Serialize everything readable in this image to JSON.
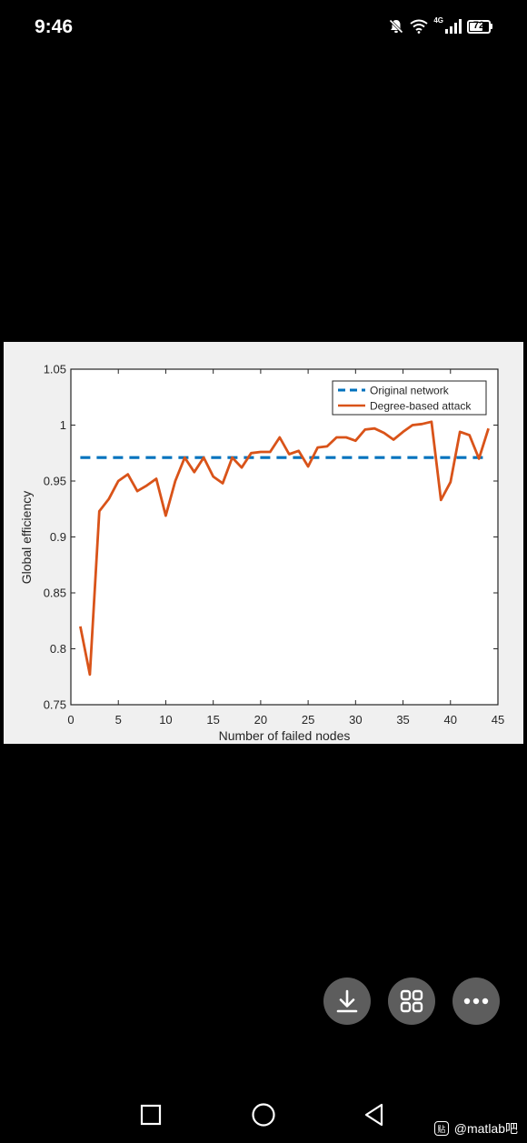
{
  "status_bar": {
    "time": "9:46",
    "network_type": "4G",
    "battery_level": "72",
    "battery_fraction": 0.72,
    "icons": [
      "bell-off-icon",
      "wifi-icon",
      "signal-icon",
      "battery-icon"
    ]
  },
  "chart_data": {
    "type": "line",
    "title": "",
    "xlabel": "Number of failed nodes",
    "ylabel": "Global efficiency",
    "xlim": [
      0,
      45
    ],
    "ylim": [
      0.75,
      1.05
    ],
    "x_ticks": [
      0,
      5,
      10,
      15,
      20,
      25,
      30,
      35,
      40,
      45
    ],
    "y_ticks": [
      0.75,
      0.8,
      0.85,
      0.9,
      0.95,
      1,
      1.05
    ],
    "x_tick_labels": [
      "0",
      "5",
      "10",
      "15",
      "20",
      "25",
      "30",
      "35",
      "40",
      "45"
    ],
    "y_tick_labels": [
      "0.75",
      "0.8",
      "0.85",
      "0.9",
      "0.95",
      "1",
      "1.05"
    ],
    "grid": false,
    "legend_position": "top-right",
    "series": [
      {
        "name": "Original network",
        "style": "dashed",
        "color": "#0072BD",
        "x": [
          1,
          44
        ],
        "y": [
          0.971,
          0.971
        ]
      },
      {
        "name": "Degree-based attack",
        "style": "solid",
        "color": "#D95319",
        "x": [
          1,
          2,
          3,
          4,
          5,
          6,
          7,
          8,
          9,
          10,
          11,
          12,
          13,
          14,
          15,
          16,
          17,
          18,
          19,
          20,
          21,
          22,
          23,
          24,
          25,
          26,
          27,
          28,
          29,
          30,
          31,
          32,
          33,
          34,
          35,
          36,
          37,
          38,
          39,
          40,
          41,
          42,
          43,
          44
        ],
        "y": [
          0.82,
          0.777,
          0.923,
          0.934,
          0.95,
          0.956,
          0.941,
          0.946,
          0.952,
          0.919,
          0.95,
          0.971,
          0.958,
          0.971,
          0.954,
          0.948,
          0.971,
          0.962,
          0.975,
          0.976,
          0.976,
          0.989,
          0.974,
          0.977,
          0.963,
          0.98,
          0.981,
          0.989,
          0.989,
          0.986,
          0.996,
          0.997,
          0.993,
          0.987,
          0.994,
          1.0,
          1.001,
          1.003,
          0.933,
          0.949,
          0.994,
          0.991,
          0.97,
          0.997
        ]
      }
    ]
  },
  "fabs": [
    {
      "id": "download",
      "icon": "download-icon"
    },
    {
      "id": "grid",
      "icon": "grid-icon"
    },
    {
      "id": "more",
      "icon": "more-icon"
    }
  ],
  "nav_bar": {
    "icons": [
      "recent-apps-icon",
      "home-icon",
      "back-icon"
    ],
    "watermark": "@matlab吧",
    "watermark_logo": "贴"
  }
}
